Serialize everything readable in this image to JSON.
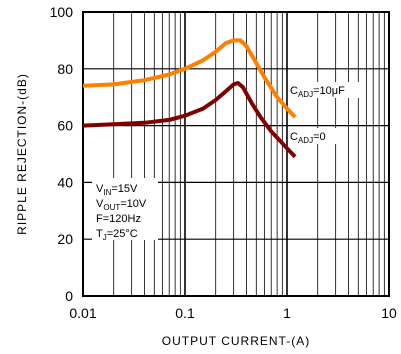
{
  "chart_data": {
    "type": "line",
    "title": "",
    "xlabel": "OUTPUT CURRENT-(A)",
    "ylabel": "RIPPLE REJECTION-(dB)",
    "x_scale": "log",
    "xlim": [
      0.01,
      10
    ],
    "ylim": [
      0,
      100
    ],
    "x_ticks": [
      "0.01",
      "0.1",
      "1",
      "10"
    ],
    "y_ticks": [
      "0",
      "20",
      "40",
      "60",
      "80",
      "100"
    ],
    "grid": true,
    "conditions": [
      {
        "main": "V",
        "sub": "IN",
        "rest": "=15V"
      },
      {
        "main": "V",
        "sub": "OUT",
        "rest": "=10V"
      },
      {
        "main": "F=120Hz",
        "sub": "",
        "rest": ""
      },
      {
        "main": "T",
        "sub": "J",
        "rest": "=25°C"
      }
    ],
    "series": [
      {
        "label_main": "C",
        "label_sub": "ADJ",
        "label_rest": "=10μF",
        "color": "#ff8000",
        "x": [
          0.01,
          0.02,
          0.04,
          0.07,
          0.1,
          0.15,
          0.2,
          0.25,
          0.3,
          0.35,
          0.4,
          0.5,
          0.6,
          0.8,
          1.0,
          1.2
        ],
        "y": [
          74,
          74.5,
          76,
          78,
          80,
          83,
          86,
          89,
          90,
          90,
          88,
          82,
          77,
          70,
          66,
          63
        ]
      },
      {
        "label_main": "C",
        "label_sub": "ADJ",
        "label_rest": "=0",
        "color": "#800000",
        "x": [
          0.01,
          0.02,
          0.04,
          0.07,
          0.1,
          0.15,
          0.2,
          0.25,
          0.3,
          0.33,
          0.37,
          0.45,
          0.55,
          0.7,
          1.0,
          1.2
        ],
        "y": [
          60,
          60.5,
          61,
          62,
          63.5,
          66,
          69,
          72,
          74.5,
          75,
          73.5,
          68,
          63,
          58,
          52,
          49
        ]
      }
    ]
  }
}
